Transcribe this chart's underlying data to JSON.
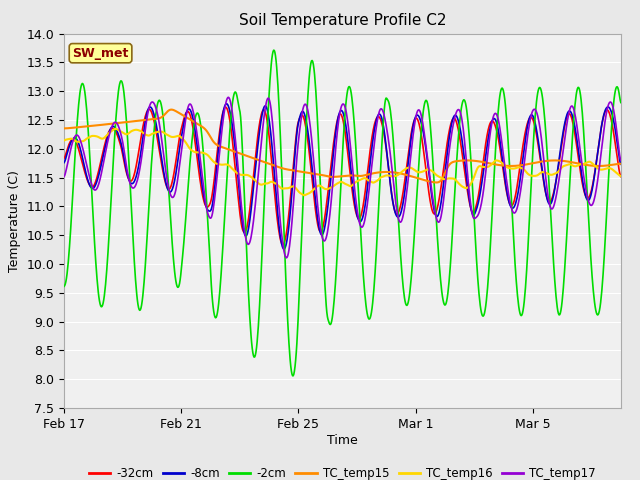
{
  "title": "Soil Temperature Profile C2",
  "xlabel": "Time",
  "ylabel": "Temperature (C)",
  "ylim": [
    7.5,
    14.0
  ],
  "yticks": [
    7.5,
    8.0,
    8.5,
    9.0,
    9.5,
    10.0,
    10.5,
    11.0,
    11.5,
    12.0,
    12.5,
    13.0,
    13.5,
    14.0
  ],
  "xtick_labels": [
    "Feb 17",
    "Feb 21",
    "Feb 25",
    "Mar 1",
    "Mar 5"
  ],
  "annotation_text": "SW_met",
  "annotation_color": "#8B0000",
  "annotation_bg": "#FFFF99",
  "annotation_border": "#8B6914",
  "series": {
    "minus32cm": {
      "color": "#FF0000",
      "label": "-32cm",
      "lw": 1.2
    },
    "minus8cm": {
      "color": "#0000CC",
      "label": "-8cm",
      "lw": 1.2
    },
    "minus2cm": {
      "color": "#00DD00",
      "label": "-2cm",
      "lw": 1.2
    },
    "TC_temp15": {
      "color": "#FF8C00",
      "label": "TC_temp15",
      "lw": 1.5
    },
    "TC_temp16": {
      "color": "#FFD700",
      "label": "TC_temp16",
      "lw": 1.5
    },
    "TC_temp17": {
      "color": "#9400D3",
      "label": "TC_temp17",
      "lw": 1.2
    }
  },
  "bg_color": "#E8E8E8",
  "plot_bg": "#F0F0F0",
  "grid_color": "#FFFFFF",
  "total_days": 19.0
}
